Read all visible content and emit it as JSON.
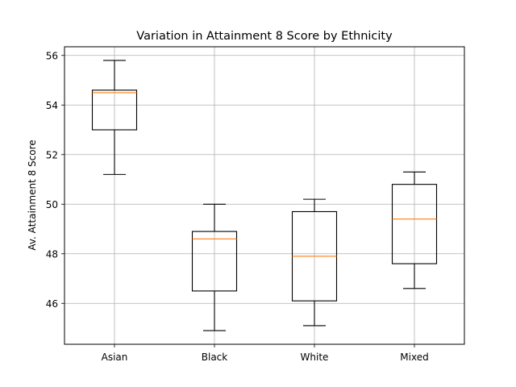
{
  "chart_data": {
    "type": "box",
    "title": "Variation in Attainment 8 Score by Ethnicity",
    "xlabel": "",
    "ylabel": "Av. Attainment 8 Score",
    "categories": [
      "Asian",
      "Black",
      "White",
      "Mixed"
    ],
    "boxes": [
      {
        "category": "Asian",
        "whisker_low": 51.2,
        "q1": 53.0,
        "median": 54.5,
        "q3": 54.6,
        "whisker_high": 55.8
      },
      {
        "category": "Black",
        "whisker_low": 44.9,
        "q1": 46.5,
        "median": 48.6,
        "q3": 48.9,
        "whisker_high": 50.0
      },
      {
        "category": "White",
        "whisker_low": 45.1,
        "q1": 46.1,
        "median": 47.9,
        "q3": 49.7,
        "whisker_high": 50.2
      },
      {
        "category": "Mixed",
        "whisker_low": 46.6,
        "q1": 47.6,
        "median": 49.4,
        "q3": 50.8,
        "whisker_high": 51.3
      }
    ],
    "yticks": [
      46,
      48,
      50,
      52,
      54,
      56
    ],
    "ylim": [
      44.35,
      56.35
    ],
    "grid": true,
    "colors": {
      "box": "#000000",
      "median": "#ff7f0e",
      "grid": "#b0b0b0"
    }
  }
}
